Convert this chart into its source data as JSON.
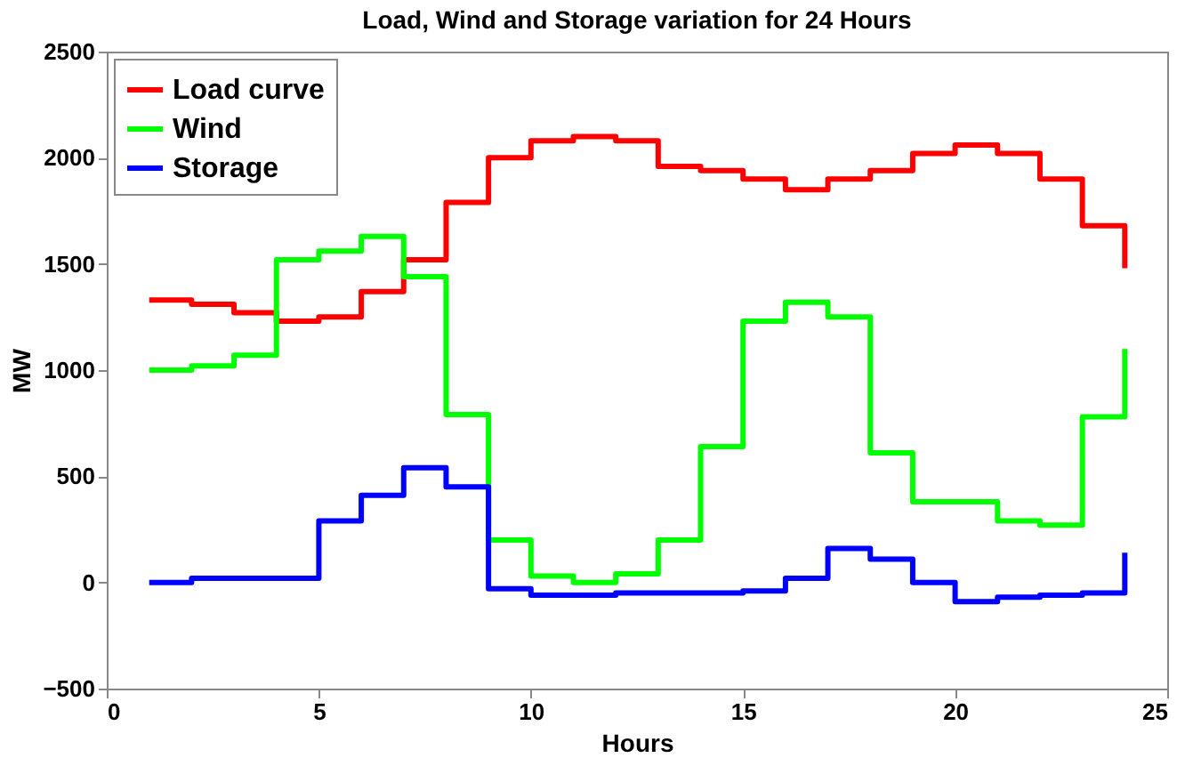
{
  "chart_data": {
    "type": "step",
    "title": "Load, Wind and Storage variation for 24 Hours",
    "xlabel": "Hours",
    "ylabel": "MW",
    "x": [
      1,
      2,
      3,
      4,
      5,
      6,
      7,
      8,
      9,
      10,
      11,
      12,
      13,
      14,
      15,
      16,
      17,
      18,
      19,
      20,
      21,
      22,
      23,
      24
    ],
    "series": [
      {
        "name": "Load curve",
        "color": "#ff0000",
        "values": [
          1330,
          1310,
          1270,
          1230,
          1250,
          1370,
          1520,
          1790,
          2000,
          2080,
          2100,
          2080,
          1960,
          1940,
          1900,
          1850,
          1900,
          1940,
          2020,
          2060,
          2020,
          1900,
          1680,
          1480
        ]
      },
      {
        "name": "Wind",
        "color": "#00ff00",
        "values": [
          1000,
          1020,
          1070,
          1520,
          1560,
          1630,
          1440,
          790,
          200,
          30,
          0,
          40,
          200,
          640,
          1230,
          1320,
          1250,
          610,
          380,
          380,
          290,
          270,
          780,
          1100
        ]
      },
      {
        "name": "Storage",
        "color": "#0000ff",
        "values": [
          0,
          20,
          20,
          20,
          290,
          410,
          540,
          450,
          -30,
          -60,
          -60,
          -50,
          -50,
          -50,
          -40,
          20,
          160,
          110,
          0,
          -90,
          -70,
          -60,
          -50,
          140
        ]
      }
    ],
    "xlim": [
      0,
      25
    ],
    "xticks": [
      0,
      5,
      10,
      15,
      20,
      25
    ],
    "ylim": [
      -500,
      2500
    ],
    "yticks": [
      -500,
      0,
      500,
      1000,
      1500,
      2000,
      2500
    ],
    "grid": false,
    "legend": "top left",
    "marker": "none",
    "line_style": "solid"
  }
}
